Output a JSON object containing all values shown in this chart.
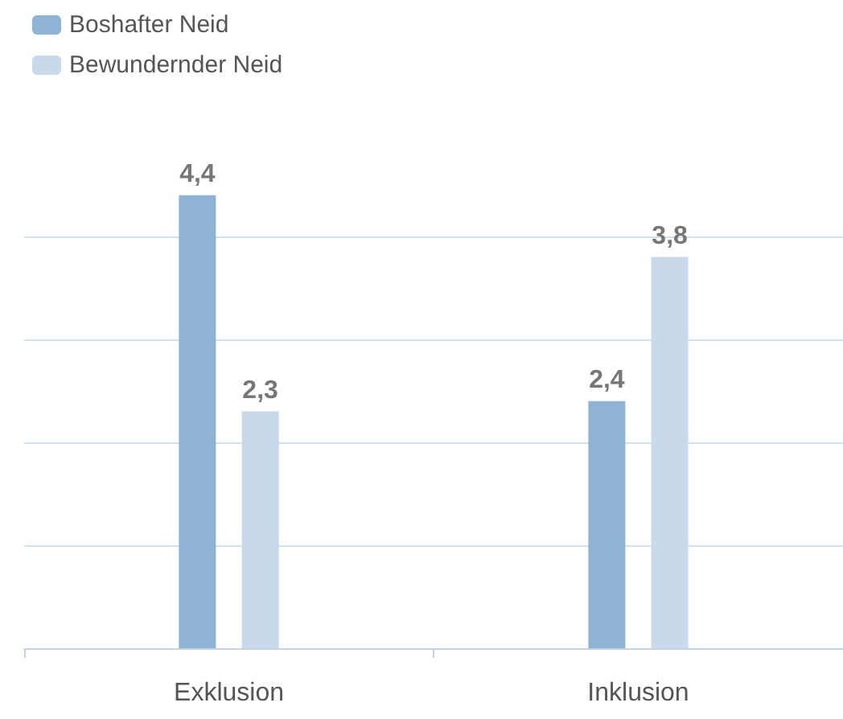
{
  "chart_data": {
    "type": "bar",
    "categories": [
      "Exklusion",
      "Inklusion"
    ],
    "series": [
      {
        "name": "Boshafter Neid",
        "color": "#8fb3d5",
        "values": [
          4.4,
          2.4
        ],
        "value_labels": [
          "4,4",
          "2,4"
        ]
      },
      {
        "name": "Bewundernder Neid",
        "color": "#c9d9ec",
        "values": [
          2.3,
          3.8
        ],
        "value_labels": [
          "2,3",
          "3,8"
        ]
      }
    ],
    "yticks": [
      {
        "value": 1,
        "label": null
      },
      {
        "value": 2,
        "label": null
      },
      {
        "value": 3,
        "label": null
      },
      {
        "value": 4,
        "label": null
      }
    ],
    "tick_labels": "x",
    "grid": "y",
    "legend": "top left"
  }
}
